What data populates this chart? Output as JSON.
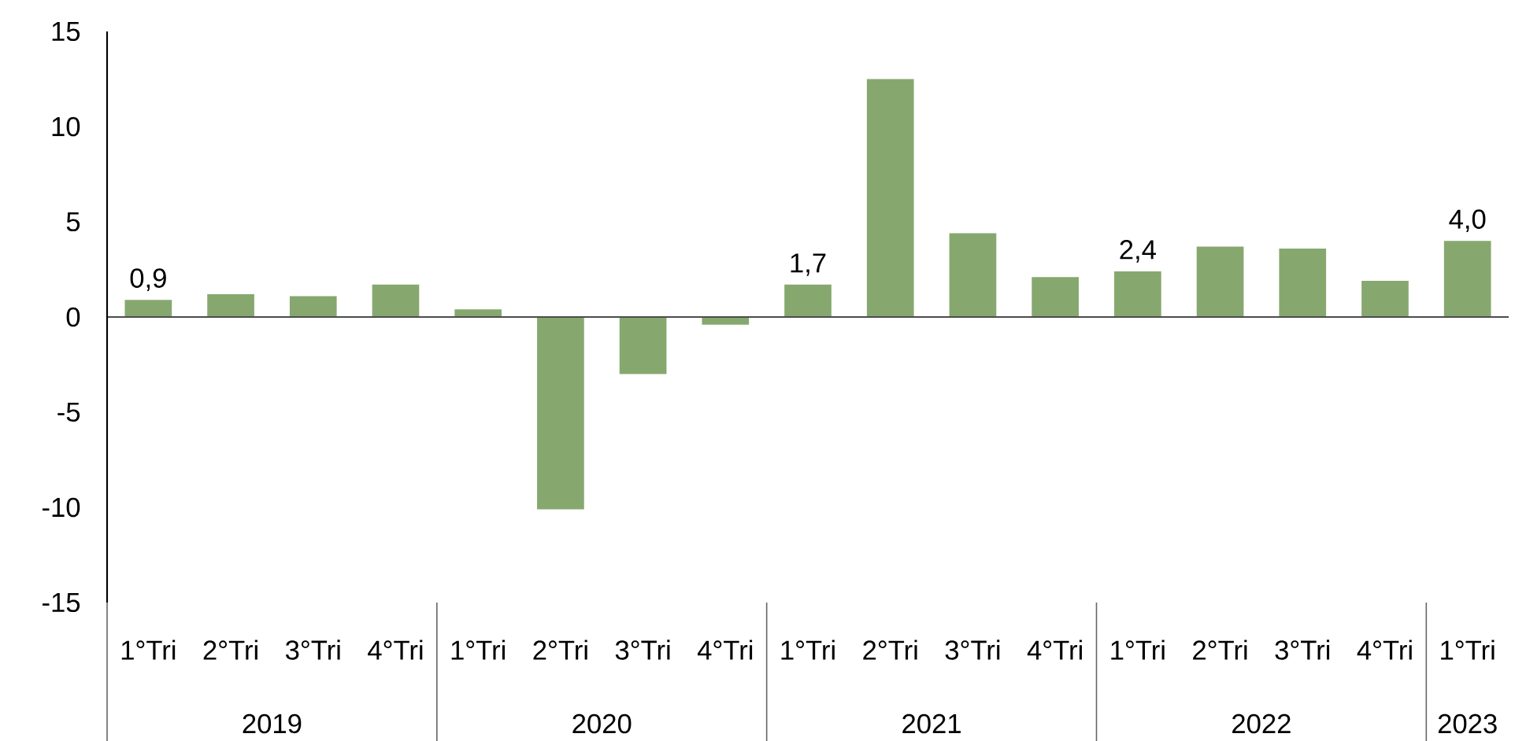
{
  "chart_data": {
    "type": "bar",
    "categories": [
      "1°Tri",
      "2°Tri",
      "3°Tri",
      "4°Tri",
      "1°Tri",
      "2°Tri",
      "3°Tri",
      "4°Tri",
      "1°Tri",
      "2°Tri",
      "3°Tri",
      "4°Tri",
      "1°Tri",
      "2°Tri",
      "3°Tri",
      "4°Tri",
      "1°Tri"
    ],
    "values": [
      0.9,
      1.2,
      1.1,
      1.7,
      0.4,
      -10.1,
      -3.0,
      -0.4,
      1.7,
      12.5,
      4.4,
      2.1,
      2.4,
      3.7,
      3.6,
      1.9,
      4.0
    ],
    "value_labels": [
      "0,9",
      null,
      null,
      null,
      null,
      null,
      null,
      null,
      "1,7",
      null,
      null,
      null,
      "2,4",
      null,
      null,
      null,
      "4,0"
    ],
    "color": "#86a86f",
    "ylim": [
      -15,
      15
    ],
    "yticks": [
      -15,
      -10,
      -5,
      0,
      5,
      10,
      15
    ],
    "annotations": [
      "2019",
      "2020",
      "2021",
      "2022",
      "2023"
    ]
  }
}
